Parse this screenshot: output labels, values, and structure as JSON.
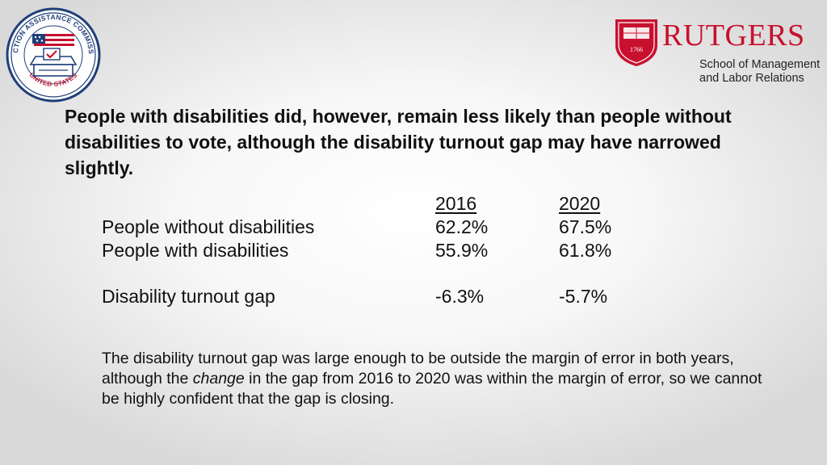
{
  "logos": {
    "eac_seal_icon": "election-assistance-commission-seal",
    "eac_seal_text_top": "ELECTION ASSISTANCE COMMISSION",
    "eac_seal_text_bottom": "UNITED STATES",
    "rutgers_shield_icon": "rutgers-shield",
    "rutgers_shield_year": "1766",
    "rutgers_wordmark": "RUTGERS",
    "rutgers_sub_line1": "School of Management",
    "rutgers_sub_line2": "and Labor Relations"
  },
  "headline": "People with disabilities did, however, remain less likely than people without disabilities to vote, although the disability turnout gap may have narrowed slightly.",
  "table": {
    "header": {
      "label": "",
      "year1": "2016",
      "year2": "2020"
    },
    "rows": [
      {
        "label": "People without disabilities",
        "year1": "62.2%",
        "year2": "67.5%"
      },
      {
        "label": "People with disabilities",
        "year1": "55.9%",
        "year2": "61.8%"
      }
    ],
    "gap": {
      "label": "Disability turnout gap",
      "year1": "-6.3%",
      "year2": "-5.7%"
    }
  },
  "note": {
    "part1": "The disability turnout gap was large enough to be outside the margin of error in both years, although the ",
    "emphasis": "change",
    "part2": " in the gap from 2016 to 2020 was within the margin of error, so we cannot be highly confident that the gap is closing."
  },
  "colors": {
    "rutgers_red": "#c8102e",
    "eac_navy": "#1f3f7a",
    "eac_red": "#c8102e",
    "text": "#111111"
  }
}
